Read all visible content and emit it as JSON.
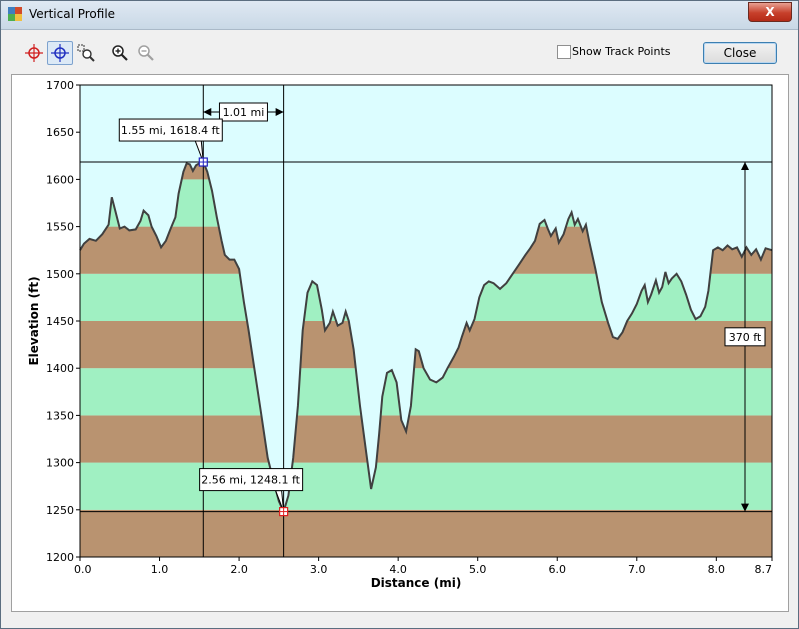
{
  "window": {
    "title": "Vertical Profile",
    "close_glyph": "X"
  },
  "toolbar": {
    "tools": [
      {
        "name": "crosshair-red-icon",
        "active": false
      },
      {
        "name": "crosshair-blue-icon",
        "active": true
      },
      {
        "name": "zoom-region-icon",
        "active": false
      },
      {
        "name": "zoom-in-icon",
        "active": false
      },
      {
        "name": "zoom-out-icon",
        "active": false,
        "disabled": true
      }
    ],
    "show_track_points_label": "Show Track Points",
    "show_track_points_checked": false,
    "close_label": "Close"
  },
  "chart_data": {
    "type": "area",
    "xlabel": "Distance   (mi)",
    "ylabel": "Elevation (ft)",
    "xlim": [
      0,
      8.7
    ],
    "ylim": [
      1200,
      1700
    ],
    "xticks": [
      "0.0",
      "1.0",
      "2.0",
      "3.0",
      "4.0",
      "5.0",
      "6.0",
      "7.0",
      "8.0",
      "8.7"
    ],
    "yticks": [
      "1200",
      "1250",
      "1300",
      "1350",
      "1400",
      "1450",
      "1500",
      "1550",
      "1600",
      "1650",
      "1700"
    ],
    "band_colors": [
      "#b99370",
      "#a0f0c2"
    ],
    "background": "#dcfdff",
    "line_color": "#404040",
    "markers": [
      {
        "x": 1.55,
        "y": 1618.4,
        "label": "1.55 mi, 1618.4 ft",
        "color": "#2020c0"
      },
      {
        "x": 2.56,
        "y": 1248.1,
        "label": "2.56 mi, 1248.1 ft",
        "color": "#e02020"
      }
    ],
    "distance_label": "1.01 mi",
    "elevation_diff_label": "370 ft",
    "profile": [
      [
        0.0,
        1525
      ],
      [
        0.05,
        1532
      ],
      [
        0.12,
        1537
      ],
      [
        0.2,
        1535
      ],
      [
        0.28,
        1542
      ],
      [
        0.36,
        1552
      ],
      [
        0.4,
        1581
      ],
      [
        0.44,
        1568
      ],
      [
        0.5,
        1548
      ],
      [
        0.56,
        1550
      ],
      [
        0.62,
        1546
      ],
      [
        0.7,
        1547
      ],
      [
        0.76,
        1556
      ],
      [
        0.8,
        1567
      ],
      [
        0.86,
        1562
      ],
      [
        0.9,
        1550
      ],
      [
        0.96,
        1540
      ],
      [
        1.02,
        1528
      ],
      [
        1.08,
        1535
      ],
      [
        1.14,
        1548
      ],
      [
        1.2,
        1560
      ],
      [
        1.24,
        1585
      ],
      [
        1.3,
        1608
      ],
      [
        1.34,
        1617
      ],
      [
        1.38,
        1616
      ],
      [
        1.42,
        1609
      ],
      [
        1.46,
        1615
      ],
      [
        1.52,
        1618
      ],
      [
        1.55,
        1618.4
      ],
      [
        1.6,
        1608
      ],
      [
        1.66,
        1588
      ],
      [
        1.72,
        1560
      ],
      [
        1.78,
        1535
      ],
      [
        1.82,
        1520
      ],
      [
        1.88,
        1515
      ],
      [
        1.94,
        1515
      ],
      [
        2.0,
        1505
      ],
      [
        2.06,
        1470
      ],
      [
        2.12,
        1440
      ],
      [
        2.2,
        1395
      ],
      [
        2.28,
        1350
      ],
      [
        2.36,
        1305
      ],
      [
        2.44,
        1278
      ],
      [
        2.5,
        1259
      ],
      [
        2.56,
        1248.1
      ],
      [
        2.62,
        1265
      ],
      [
        2.68,
        1305
      ],
      [
        2.74,
        1360
      ],
      [
        2.8,
        1440
      ],
      [
        2.86,
        1480
      ],
      [
        2.92,
        1492
      ],
      [
        2.98,
        1488
      ],
      [
        3.04,
        1462
      ],
      [
        3.08,
        1440
      ],
      [
        3.14,
        1448
      ],
      [
        3.18,
        1460
      ],
      [
        3.24,
        1445
      ],
      [
        3.3,
        1448
      ],
      [
        3.34,
        1460
      ],
      [
        3.38,
        1450
      ],
      [
        3.44,
        1420
      ],
      [
        3.52,
        1360
      ],
      [
        3.6,
        1310
      ],
      [
        3.66,
        1272
      ],
      [
        3.72,
        1295
      ],
      [
        3.76,
        1330
      ],
      [
        3.8,
        1370
      ],
      [
        3.86,
        1395
      ],
      [
        3.92,
        1398
      ],
      [
        3.98,
        1385
      ],
      [
        4.04,
        1345
      ],
      [
        4.1,
        1333
      ],
      [
        4.16,
        1360
      ],
      [
        4.22,
        1420
      ],
      [
        4.26,
        1418
      ],
      [
        4.32,
        1400
      ],
      [
        4.4,
        1388
      ],
      [
        4.48,
        1385
      ],
      [
        4.56,
        1390
      ],
      [
        4.62,
        1400
      ],
      [
        4.7,
        1412
      ],
      [
        4.76,
        1422
      ],
      [
        4.8,
        1433
      ],
      [
        4.86,
        1448
      ],
      [
        4.9,
        1440
      ],
      [
        4.96,
        1452
      ],
      [
        5.02,
        1475
      ],
      [
        5.08,
        1488
      ],
      [
        5.14,
        1492
      ],
      [
        5.2,
        1490
      ],
      [
        5.28,
        1484
      ],
      [
        5.36,
        1490
      ],
      [
        5.44,
        1500
      ],
      [
        5.52,
        1510
      ],
      [
        5.6,
        1520
      ],
      [
        5.66,
        1527
      ],
      [
        5.72,
        1535
      ],
      [
        5.78,
        1553
      ],
      [
        5.84,
        1557
      ],
      [
        5.88,
        1548
      ],
      [
        5.92,
        1540
      ],
      [
        5.98,
        1548
      ],
      [
        6.02,
        1533
      ],
      [
        6.08,
        1542
      ],
      [
        6.14,
        1558
      ],
      [
        6.18,
        1565
      ],
      [
        6.22,
        1552
      ],
      [
        6.26,
        1558
      ],
      [
        6.32,
        1545
      ],
      [
        6.36,
        1552
      ],
      [
        6.4,
        1535
      ],
      [
        6.48,
        1505
      ],
      [
        6.56,
        1470
      ],
      [
        6.64,
        1448
      ],
      [
        6.7,
        1433
      ],
      [
        6.76,
        1431
      ],
      [
        6.82,
        1438
      ],
      [
        6.88,
        1450
      ],
      [
        6.94,
        1458
      ],
      [
        7.0,
        1468
      ],
      [
        7.06,
        1482
      ],
      [
        7.1,
        1488
      ],
      [
        7.14,
        1470
      ],
      [
        7.18,
        1478
      ],
      [
        7.24,
        1493
      ],
      [
        7.28,
        1480
      ],
      [
        7.32,
        1486
      ],
      [
        7.36,
        1502
      ],
      [
        7.4,
        1490
      ],
      [
        7.44,
        1495
      ],
      [
        7.5,
        1500
      ],
      [
        7.56,
        1492
      ],
      [
        7.62,
        1478
      ],
      [
        7.68,
        1462
      ],
      [
        7.74,
        1452
      ],
      [
        7.8,
        1455
      ],
      [
        7.86,
        1465
      ],
      [
        7.9,
        1482
      ],
      [
        7.96,
        1525
      ],
      [
        8.02,
        1528
      ],
      [
        8.08,
        1525
      ],
      [
        8.14,
        1530
      ],
      [
        8.2,
        1526
      ],
      [
        8.26,
        1528
      ],
      [
        8.32,
        1518
      ],
      [
        8.38,
        1528
      ],
      [
        8.44,
        1520
      ],
      [
        8.5,
        1526
      ],
      [
        8.56,
        1515
      ],
      [
        8.62,
        1527
      ],
      [
        8.7,
        1525
      ]
    ]
  }
}
